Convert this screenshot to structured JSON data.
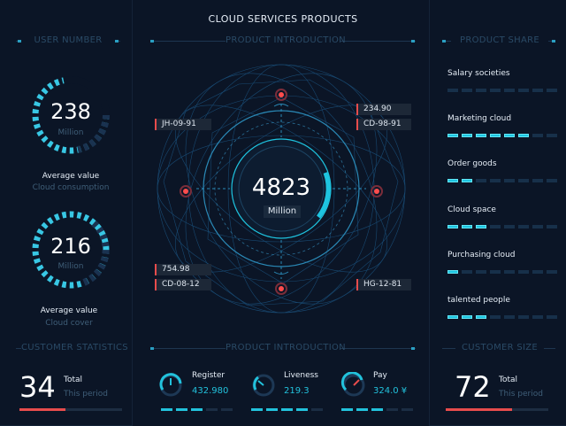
{
  "header": {
    "title": "CLOUD SERVICES PRODUCTS"
  },
  "sections": {
    "user_number": "USER NUMBER",
    "product_intro_top": "PRODUCT INTRODUCTION",
    "product_share": "PRODUCT SHARE",
    "customer_statistics": "CUSTOMER  STATISTICS",
    "product_intro_bottom": "PRODUCT INTRODUCTION",
    "customer_size": "CUSTOMER SIZE"
  },
  "user_gauges": [
    {
      "value": "238",
      "unit": "Million",
      "title": "Average value",
      "subtitle": "Cloud consumption"
    },
    {
      "value": "216",
      "unit": "Million",
      "title": "Average value",
      "subtitle": "Cloud cover"
    }
  ],
  "center": {
    "value": "4823",
    "unit": "Million",
    "tags": {
      "left_top": "JH-09-91",
      "right_top_1": "234.90",
      "right_top_2": "CD-98-91",
      "left_bottom_1": "754.98",
      "left_bottom_2": "CD-08-12",
      "right_bottom": "HG-12-81"
    }
  },
  "product_share": [
    {
      "label": "Salary societies",
      "filled": 0
    },
    {
      "label": "Marketing cloud",
      "filled": 6
    },
    {
      "label": "Order goods",
      "filled": 2
    },
    {
      "label": "Cloud space",
      "filled": 3
    },
    {
      "label": "Purchasing cloud",
      "filled": 1
    },
    {
      "label": "talented people",
      "filled": 3
    }
  ],
  "customer_statistics": {
    "value": "34",
    "label": "Total",
    "sub": "This period",
    "fill": 0.45
  },
  "customer_size": {
    "value": "72",
    "label": "Total",
    "sub": "This period",
    "fill": 0.65
  },
  "products": [
    {
      "label": "Register",
      "value": "432.980"
    },
    {
      "label": "Liveness",
      "value": "219.3"
    },
    {
      "label": "Pay",
      "value": "324.0 ¥"
    }
  ],
  "colors": {
    "accent": "#22c2dc",
    "alert": "#e74c4c",
    "background": "#0b1526"
  }
}
